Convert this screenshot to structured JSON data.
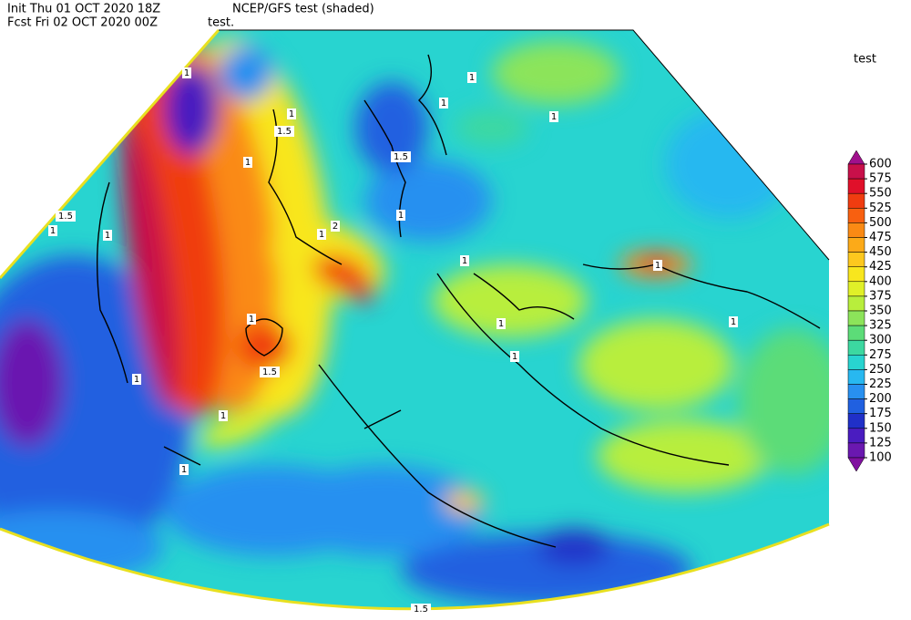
{
  "header": {
    "init": "Init  Thu 01 OCT 2020 18Z",
    "fcst": "Fcst Fri 02 OCT 2020 00Z",
    "title": "NCEP/GFS test (shaded)",
    "subtitle": "test."
  },
  "colorbar": {
    "title": "test",
    "levels": [
      600,
      575,
      550,
      525,
      500,
      475,
      450,
      425,
      400,
      375,
      350,
      325,
      300,
      275,
      250,
      225,
      200,
      175,
      150,
      125,
      100
    ],
    "colors": [
      "#a0108c",
      "#c8104a",
      "#e0102a",
      "#f03c10",
      "#f86010",
      "#fa8a14",
      "#fcaa18",
      "#fdc81e",
      "#f8e61e",
      "#e0f028",
      "#b8ee3c",
      "#8ce45a",
      "#5cdc78",
      "#3cd8a0",
      "#28d4d0",
      "#28b8f0",
      "#2890f0",
      "#2060e0",
      "#2030c8",
      "#4a1cc0",
      "#6a18b0",
      "#8010a0"
    ]
  },
  "contour_labels": [
    "1",
    "1",
    "1.5",
    "1",
    "1.5",
    "1",
    "1",
    "2",
    "1",
    "1.5",
    "1",
    "1",
    "1",
    "1",
    "1",
    "1",
    "1",
    "1",
    "1",
    "1.5",
    "1",
    "1",
    "1",
    "1",
    "1.5"
  ]
}
